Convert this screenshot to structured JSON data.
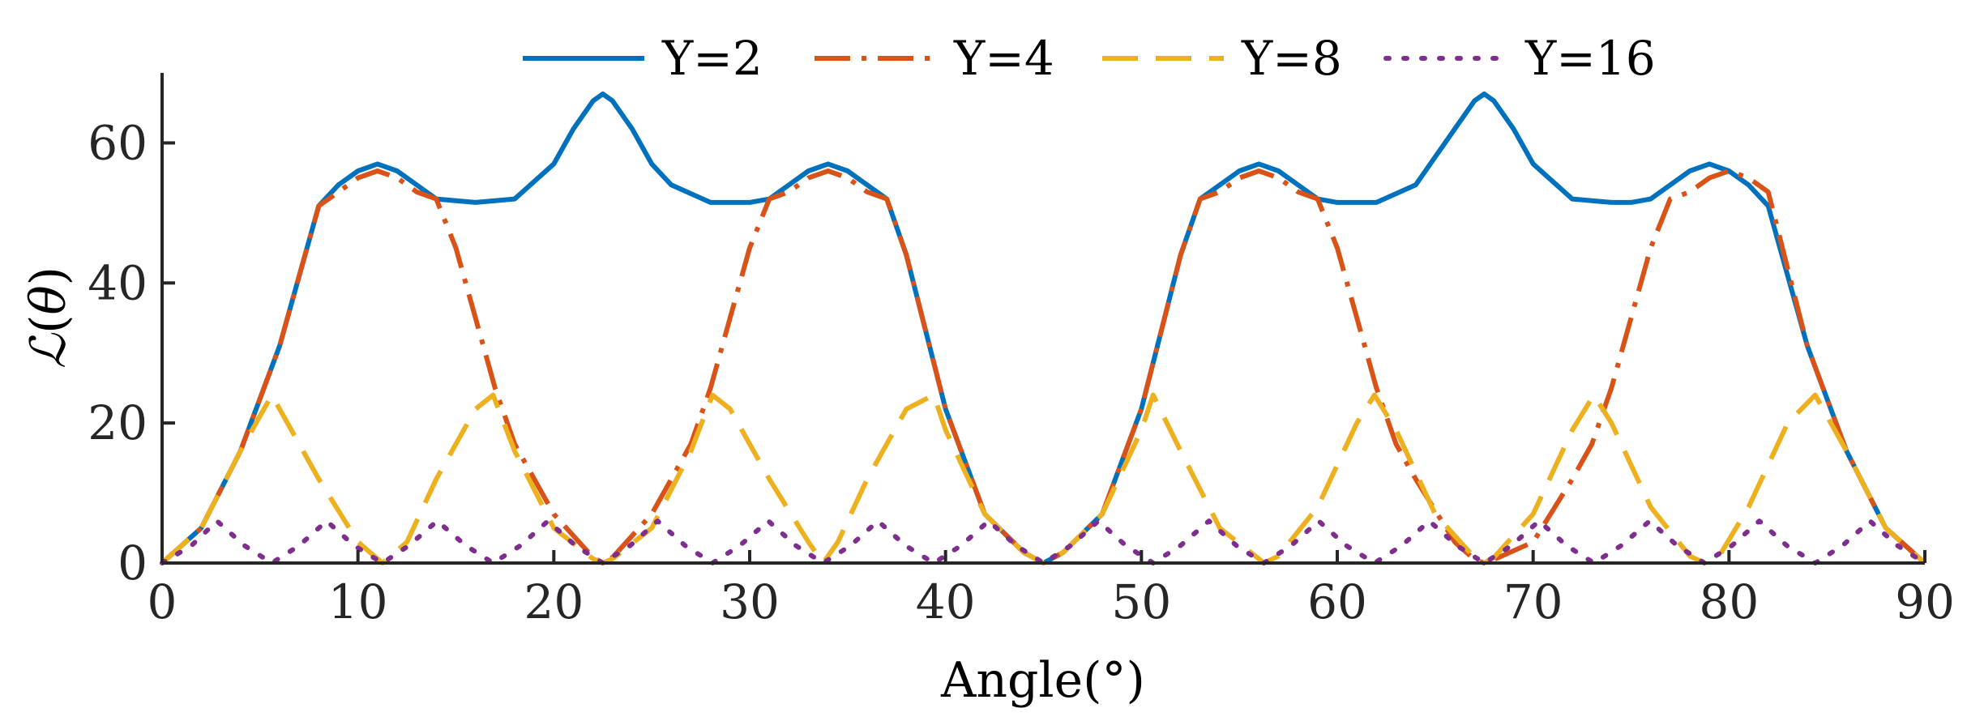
{
  "chart_data": {
    "type": "line",
    "title": "",
    "xlabel": "Angle(°)",
    "ylabel": "L(θ)",
    "xlim": [
      0,
      90
    ],
    "ylim": [
      0,
      70
    ],
    "xticks": [
      0,
      10,
      20,
      30,
      40,
      50,
      60,
      70,
      80,
      90
    ],
    "yticks": [
      0,
      20,
      40,
      60
    ],
    "legend_position": "top",
    "series": [
      {
        "name": "Y=2",
        "color": "#0072BD",
        "style": "solid",
        "x": [
          0,
          2,
          4,
          6,
          8,
          9,
          10,
          11,
          12,
          13,
          14,
          16,
          18,
          20,
          21,
          22,
          22.5,
          23,
          24,
          25,
          26,
          28,
          30,
          31,
          32,
          33,
          34,
          35,
          36,
          37,
          38,
          40,
          42,
          44,
          45,
          46,
          48,
          50,
          52,
          53,
          54,
          55,
          56,
          57,
          58,
          59,
          60,
          62,
          64,
          66,
          67,
          67.5,
          68,
          69,
          70,
          72,
          74,
          75,
          76,
          77,
          78,
          79,
          80,
          81,
          82,
          84,
          86,
          88,
          90
        ],
        "y": [
          0,
          5,
          16,
          31,
          51,
          54,
          56,
          57,
          56,
          54,
          52,
          51.5,
          52,
          57,
          62,
          66,
          67,
          66,
          62,
          57,
          54,
          51.5,
          51.5,
          52,
          54,
          56,
          57,
          56,
          54,
          52,
          44,
          22,
          7,
          1.5,
          0,
          1.5,
          7,
          22,
          44,
          52,
          54,
          56,
          57,
          56,
          54,
          52,
          51.5,
          51.5,
          54,
          62,
          66,
          67,
          66,
          62,
          57,
          52,
          51.5,
          51.5,
          52,
          54,
          56,
          57,
          56,
          54,
          51,
          31,
          16,
          5,
          0
        ]
      },
      {
        "name": "Y=4",
        "color": "#D95319",
        "style": "dashdot",
        "x": [
          0,
          2,
          4,
          6,
          8,
          9,
          10,
          11,
          12,
          13,
          14,
          15,
          16,
          17,
          18,
          20,
          22,
          22.5,
          23,
          25,
          27,
          28,
          29,
          30,
          31,
          32,
          33,
          34,
          35,
          36,
          37,
          38,
          40,
          42,
          44,
          45,
          46,
          48,
          50,
          52,
          53,
          54,
          55,
          56,
          57,
          58,
          59,
          60,
          61,
          62,
          63,
          64,
          66,
          67,
          67.5,
          68,
          70,
          72,
          73,
          74,
          75,
          76,
          77,
          78,
          79,
          80,
          81,
          82,
          84,
          86,
          88,
          90
        ],
        "y": [
          0,
          5,
          16,
          31,
          51,
          53,
          55,
          56,
          55,
          53,
          52,
          45,
          35,
          25,
          17,
          7,
          0.8,
          0,
          0.8,
          7,
          17,
          25,
          35,
          45,
          52,
          53,
          55,
          56,
          55,
          53,
          52,
          44,
          22,
          7,
          1.5,
          0,
          1.5,
          7,
          22,
          44,
          52,
          53,
          55,
          56,
          55,
          53,
          52,
          45,
          35,
          25,
          17,
          12,
          3,
          0.5,
          0,
          0.5,
          3,
          12,
          17,
          25,
          35,
          45,
          52,
          53,
          55,
          56,
          55,
          53,
          31,
          16,
          5,
          0
        ]
      },
      {
        "name": "Y=8",
        "color": "#EDB120",
        "style": "dashed",
        "x": [
          0,
          2,
          4,
          5.6,
          6,
          8,
          10,
          11.25,
          12.5,
          14,
          16,
          16.9,
          18,
          20,
          22,
          22.5,
          23,
          25,
          27,
          28.1,
          29,
          31,
          33,
          33.75,
          34.5,
          36,
          38,
          39.4,
          40,
          42,
          44,
          45,
          46,
          48,
          50,
          50.6,
          52,
          54,
          56,
          56.25,
          57,
          59,
          61,
          61.9,
          63,
          65,
          67,
          67.5,
          68,
          70,
          72,
          73.1,
          74,
          76,
          78,
          78.75,
          79.5,
          81,
          83,
          84.4,
          86,
          88,
          90
        ],
        "y": [
          0,
          5,
          16,
          24,
          22,
          12,
          3,
          0,
          3,
          12,
          22,
          24,
          16,
          5,
          0.6,
          0,
          0.6,
          5,
          16,
          24,
          22,
          12,
          3,
          0,
          3,
          12,
          22,
          24,
          19,
          7,
          1.5,
          0,
          1.5,
          7,
          19,
          24,
          16,
          5,
          0.6,
          0,
          1,
          8,
          20,
          24,
          19,
          7,
          0.8,
          0,
          0.8,
          7,
          19,
          24,
          20,
          8,
          1,
          0,
          1,
          8,
          20,
          24,
          16,
          5,
          0
        ]
      },
      {
        "name": "Y=16",
        "color": "#7E2F8E",
        "style": "dotted",
        "x": [
          0,
          1.5,
          2.8,
          4.2,
          5.6,
          7,
          8.4,
          9.8,
          11.25,
          12.6,
          14.05,
          15.5,
          16.9,
          18.3,
          19.7,
          21.1,
          22.5,
          23.9,
          25.3,
          26.7,
          28.1,
          29.5,
          30.95,
          32.35,
          33.75,
          35.15,
          36.55,
          37.95,
          39.4,
          40.8,
          42.2,
          43.6,
          45,
          46.4,
          47.8,
          49.2,
          50.6,
          52,
          53.45,
          54.85,
          56.25,
          57.65,
          59.05,
          60.45,
          61.9,
          63.3,
          64.7,
          66.1,
          67.5,
          68.9,
          70.3,
          71.7,
          73.1,
          74.5,
          75.95,
          77.35,
          78.75,
          80.15,
          81.55,
          82.95,
          84.4,
          85.8,
          87.2,
          88.6,
          90
        ],
        "y": [
          0,
          2.5,
          6,
          2.5,
          0,
          2.5,
          6,
          2.5,
          0,
          2.5,
          6,
          2.5,
          0,
          2.5,
          6,
          2.5,
          0,
          2.5,
          6,
          2.5,
          0,
          2.5,
          6,
          2.5,
          0,
          2.5,
          6,
          2.5,
          0,
          2.5,
          6,
          2.5,
          0,
          2.5,
          6,
          2.5,
          0,
          2.5,
          6,
          2.5,
          0,
          2.5,
          6,
          2.5,
          0,
          2.5,
          6,
          2.5,
          0,
          2.5,
          6,
          2.5,
          0,
          2.5,
          6,
          2.5,
          0,
          2.5,
          6,
          2.5,
          0,
          2.5,
          6,
          2.5,
          0
        ]
      }
    ]
  }
}
